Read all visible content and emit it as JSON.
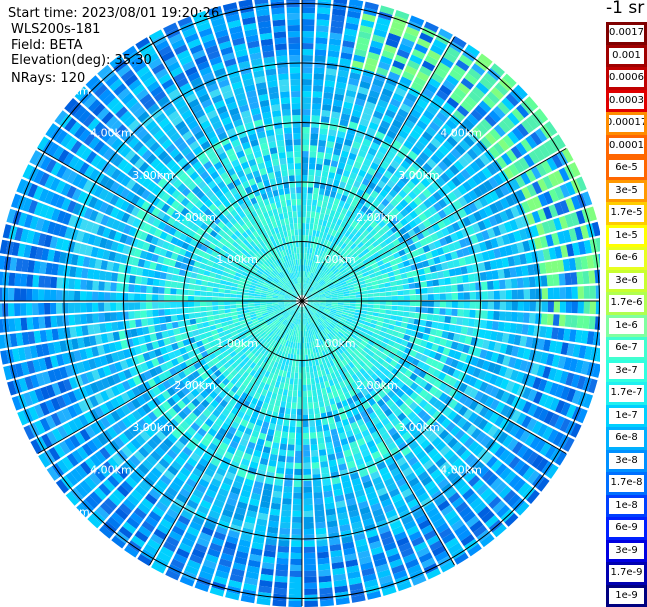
{
  "info": {
    "start_time": "Start time: 2023/08/01 19:20:26",
    "instrument": "WLS200s-181",
    "field": "Field: BETA",
    "elevation": "Elevation(deg): 35.30",
    "nrays": "NRays: 120"
  },
  "colorbar": {
    "unit_label": "-1 sr",
    "colors": [
      "#800000",
      "#a00000",
      "#c00000",
      "#e00000",
      "#ff0000",
      "#ff3300",
      "#ff6600",
      "#ff9900",
      "#ffcc00",
      "#ffff00",
      "#e8ff20",
      "#c0ff40",
      "#80ff80",
      "#40ffc0",
      "#20ffe0",
      "#00f0ff",
      "#00c0ff",
      "#0090ff",
      "#0060ff",
      "#0030ff",
      "#0000ff",
      "#0000d0",
      "#0000a0",
      "#000080"
    ],
    "labels": [
      "0.0017",
      "0.001",
      "0.0006",
      "0.0003",
      "0.00017",
      "0.0001",
      "6e-5",
      "3e-5",
      "1.7e-5",
      "1e-5",
      "6e-6",
      "3e-6",
      "1.7e-6",
      "1e-6",
      "6e-7",
      "3e-7",
      "1.7e-7",
      "1e-7",
      "6e-8",
      "3e-8",
      "1.7e-8",
      "1e-8",
      "6e-9",
      "3e-9",
      "1.7e-9",
      "1e-9"
    ]
  },
  "chart_data": {
    "type": "heatmap",
    "projection": "polar-ppi",
    "field": "BETA",
    "nrays": 120,
    "elevation_deg": 35.3,
    "range_rings_km": [
      1.0,
      2.0,
      3.0,
      4.0,
      5.0
    ],
    "ring_labels": [
      "1.00km",
      "2.00km",
      "3.00km",
      "4.00km",
      "5.00km"
    ],
    "azimuth_lines_deg": [
      0,
      30,
      60,
      90,
      120,
      150,
      180,
      210,
      240,
      270,
      300,
      330
    ],
    "max_range_km": 5.1,
    "value_range": [
      1e-09,
      0.0017
    ],
    "scale": "log",
    "dominant_values": "near field ~1.7e-7 to 3e-7, outer field ~1e-7 to 1e-8, north-east rim ~1e-6"
  },
  "colors": {
    "ring": "#000000",
    "label": "#ffffff",
    "background": "#ffffff"
  }
}
